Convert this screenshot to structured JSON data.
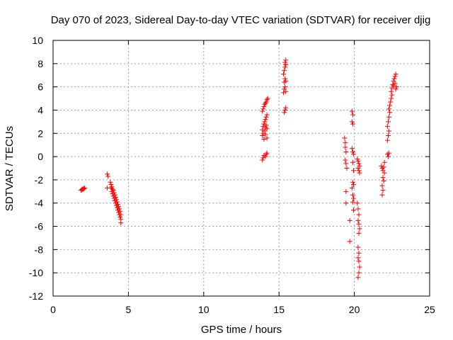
{
  "chart_data": {
    "type": "scatter",
    "title": "Day 070 of 2023, Sidereal Day-to-day VTEC variation (SDTVAR) for receiver djig",
    "xlabel": "GPS time / hours",
    "ylabel": "SDTVAR / TECUs",
    "xlim": [
      0,
      25
    ],
    "ylim": [
      -12,
      10
    ],
    "xticks": [
      "0",
      "5",
      "10",
      "15",
      "20",
      "25"
    ],
    "yticks": [
      "-12",
      "-10",
      "-8",
      "-6",
      "-4",
      "-2",
      "0",
      "2",
      "4",
      "6",
      "8",
      "10"
    ],
    "grid": true,
    "marker": "+",
    "color": "#ff0000",
    "series": [
      {
        "points": [
          [
            1.85,
            -2.9
          ],
          [
            1.9,
            -2.85
          ],
          [
            1.95,
            -2.8
          ],
          [
            2.0,
            -2.8
          ],
          [
            2.05,
            -2.75
          ],
          [
            2.1,
            -2.7
          ],
          [
            3.6,
            -1.5
          ],
          [
            3.65,
            -1.7
          ],
          [
            3.6,
            -2.7
          ],
          [
            3.8,
            -2.2
          ],
          [
            3.85,
            -2.4
          ],
          [
            3.85,
            -2.7
          ],
          [
            3.9,
            -2.6
          ],
          [
            3.9,
            -3.0
          ],
          [
            3.95,
            -2.8
          ],
          [
            3.95,
            -3.2
          ],
          [
            4.0,
            -2.9
          ],
          [
            4.0,
            -3.4
          ],
          [
            4.05,
            -3.1
          ],
          [
            4.05,
            -3.6
          ],
          [
            4.1,
            -3.3
          ],
          [
            4.1,
            -3.8
          ],
          [
            4.15,
            -3.5
          ],
          [
            4.15,
            -4.0
          ],
          [
            4.2,
            -3.7
          ],
          [
            4.2,
            -4.2
          ],
          [
            4.25,
            -3.9
          ],
          [
            4.25,
            -4.4
          ],
          [
            4.3,
            -4.1
          ],
          [
            4.3,
            -4.6
          ],
          [
            4.35,
            -4.3
          ],
          [
            4.35,
            -4.8
          ],
          [
            4.4,
            -4.5
          ],
          [
            4.4,
            -5.0
          ],
          [
            4.45,
            -4.7
          ],
          [
            4.45,
            -5.2
          ],
          [
            4.5,
            -5.0
          ],
          [
            4.5,
            -5.4
          ],
          [
            4.5,
            -5.7
          ],
          [
            13.9,
            -0.3
          ],
          [
            13.95,
            -0.1
          ],
          [
            14.0,
            0.1
          ],
          [
            14.1,
            0.0
          ],
          [
            14.15,
            0.2
          ],
          [
            14.2,
            0.3
          ],
          [
            13.9,
            1.8
          ],
          [
            13.9,
            2.3
          ],
          [
            13.95,
            2.0
          ],
          [
            13.95,
            2.6
          ],
          [
            14.0,
            1.5
          ],
          [
            14.0,
            2.8
          ],
          [
            14.05,
            2.2
          ],
          [
            14.05,
            3.0
          ],
          [
            14.1,
            1.9
          ],
          [
            14.1,
            2.5
          ],
          [
            14.1,
            3.2
          ],
          [
            14.15,
            2.7
          ],
          [
            14.15,
            3.4
          ],
          [
            14.2,
            2.4
          ],
          [
            14.2,
            3.6
          ],
          [
            14.2,
            1.6
          ],
          [
            13.9,
            3.9
          ],
          [
            13.95,
            4.1
          ],
          [
            14.0,
            4.3
          ],
          [
            14.05,
            4.5
          ],
          [
            14.1,
            4.6
          ],
          [
            14.15,
            4.7
          ],
          [
            14.2,
            4.9
          ],
          [
            14.25,
            5.0
          ],
          [
            15.35,
            3.8
          ],
          [
            15.4,
            4.0
          ],
          [
            15.45,
            4.2
          ],
          [
            15.3,
            5.5
          ],
          [
            15.35,
            5.8
          ],
          [
            15.4,
            6.0
          ],
          [
            15.45,
            5.6
          ],
          [
            15.35,
            6.4
          ],
          [
            15.4,
            6.7
          ],
          [
            15.45,
            6.5
          ],
          [
            15.3,
            7.1
          ],
          [
            15.35,
            7.4
          ],
          [
            15.4,
            7.7
          ],
          [
            15.45,
            7.9
          ],
          [
            15.4,
            8.1
          ],
          [
            15.45,
            8.3
          ],
          [
            19.35,
            1.6
          ],
          [
            19.4,
            1.2
          ],
          [
            19.4,
            0.8
          ],
          [
            19.45,
            0.4
          ],
          [
            19.4,
            -0.3
          ],
          [
            19.45,
            -0.6
          ],
          [
            19.5,
            -1.0
          ],
          [
            19.45,
            -3.0
          ],
          [
            19.45,
            -4.0
          ],
          [
            19.7,
            -5.5
          ],
          [
            19.7,
            -7.3
          ],
          [
            19.85,
            3.9
          ],
          [
            19.9,
            3.6
          ],
          [
            19.85,
            3.0
          ],
          [
            19.9,
            2.8
          ],
          [
            19.85,
            0.7
          ],
          [
            19.9,
            0.4
          ],
          [
            19.95,
            0.2
          ],
          [
            19.9,
            -0.5
          ],
          [
            19.95,
            -1.2
          ],
          [
            19.9,
            -2.2
          ],
          [
            19.95,
            -2.4
          ],
          [
            19.85,
            -2.7
          ],
          [
            19.9,
            -3.3
          ],
          [
            19.95,
            -3.6
          ],
          [
            19.9,
            -3.9
          ],
          [
            19.95,
            -4.6
          ],
          [
            20.2,
            -0.2
          ],
          [
            20.25,
            -0.4
          ],
          [
            20.3,
            -0.6
          ],
          [
            20.35,
            -0.8
          ],
          [
            20.25,
            -1.0
          ],
          [
            20.3,
            -1.2
          ],
          [
            20.35,
            -1.4
          ],
          [
            20.2,
            -4.0
          ],
          [
            20.25,
            -4.5
          ],
          [
            20.3,
            -5.0
          ],
          [
            20.25,
            -5.5
          ],
          [
            20.3,
            -5.8
          ],
          [
            20.35,
            -6.2
          ],
          [
            20.3,
            -6.6
          ],
          [
            20.25,
            -7.8
          ],
          [
            20.3,
            -8.3
          ],
          [
            20.25,
            -8.7
          ],
          [
            20.3,
            -9.0
          ],
          [
            20.35,
            -9.5
          ],
          [
            20.3,
            -10.0
          ],
          [
            20.25,
            -10.4
          ],
          [
            21.8,
            -0.8
          ],
          [
            21.85,
            -1.0
          ],
          [
            21.9,
            -1.2
          ],
          [
            21.95,
            -0.9
          ],
          [
            22.0,
            -1.4
          ],
          [
            21.9,
            -1.8
          ],
          [
            21.95,
            -2.1
          ],
          [
            21.85,
            -2.5
          ],
          [
            21.9,
            -2.9
          ],
          [
            21.85,
            -3.3
          ],
          [
            22.0,
            -0.5
          ],
          [
            22.2,
            0.2
          ],
          [
            22.25,
            0.0
          ],
          [
            22.3,
            0.3
          ],
          [
            22.2,
            1.4
          ],
          [
            22.25,
            1.8
          ],
          [
            22.3,
            2.2
          ],
          [
            22.2,
            2.6
          ],
          [
            22.25,
            3.0
          ],
          [
            22.3,
            3.4
          ],
          [
            22.35,
            3.8
          ],
          [
            22.3,
            4.1
          ],
          [
            22.35,
            4.4
          ],
          [
            22.4,
            4.7
          ],
          [
            22.45,
            5.0
          ],
          [
            22.5,
            5.3
          ],
          [
            22.45,
            5.6
          ],
          [
            22.5,
            5.9
          ],
          [
            22.55,
            6.2
          ],
          [
            22.6,
            6.5
          ],
          [
            22.65,
            6.7
          ],
          [
            22.7,
            6.9
          ],
          [
            22.75,
            7.1
          ],
          [
            22.6,
            6.1
          ],
          [
            22.7,
            6.3
          ],
          [
            22.8,
            6.0
          ],
          [
            22.75,
            5.8
          ]
        ]
      }
    ]
  }
}
